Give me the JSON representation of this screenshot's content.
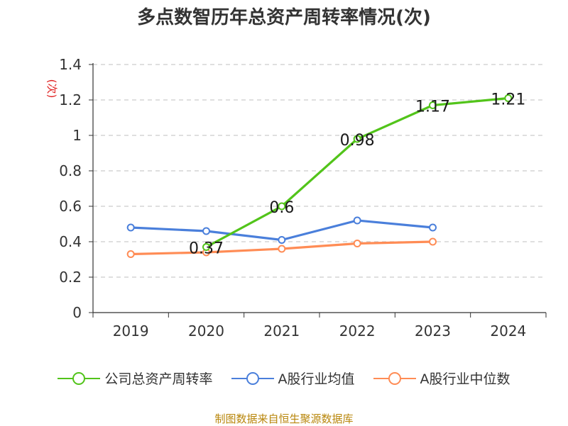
{
  "title": "多点数智历年总资产周转率情况(次)",
  "source": "制图数据来自恒生聚源数据库",
  "chart_data": {
    "type": "line",
    "title": "多点数智历年总资产周转率情况(次)",
    "ylabel": "(次)",
    "categories": [
      "2019",
      "2020",
      "2021",
      "2022",
      "2023",
      "2024"
    ],
    "ylim": [
      0,
      1.4
    ],
    "yticks": [
      "0",
      "0.2",
      "0.4",
      "0.6",
      "0.8",
      "1",
      "1.2",
      "1.4"
    ],
    "grid": true,
    "legend_position": "bottom",
    "series": [
      {
        "name": "公司总资产周转率",
        "color": "#52c41a",
        "values": [
          null,
          0.37,
          0.6,
          0.98,
          1.17,
          1.21
        ],
        "labels": [
          null,
          "0.37",
          "0.6",
          "0.98",
          "1.17",
          "1.21"
        ]
      },
      {
        "name": "A股行业均值",
        "color": "#4a7fdb",
        "values": [
          0.48,
          0.46,
          0.41,
          0.52,
          0.48,
          null
        ]
      },
      {
        "name": "A股行业中位数",
        "color": "#ff8c55",
        "values": [
          0.33,
          0.34,
          0.36,
          0.39,
          0.4,
          null
        ]
      }
    ]
  }
}
